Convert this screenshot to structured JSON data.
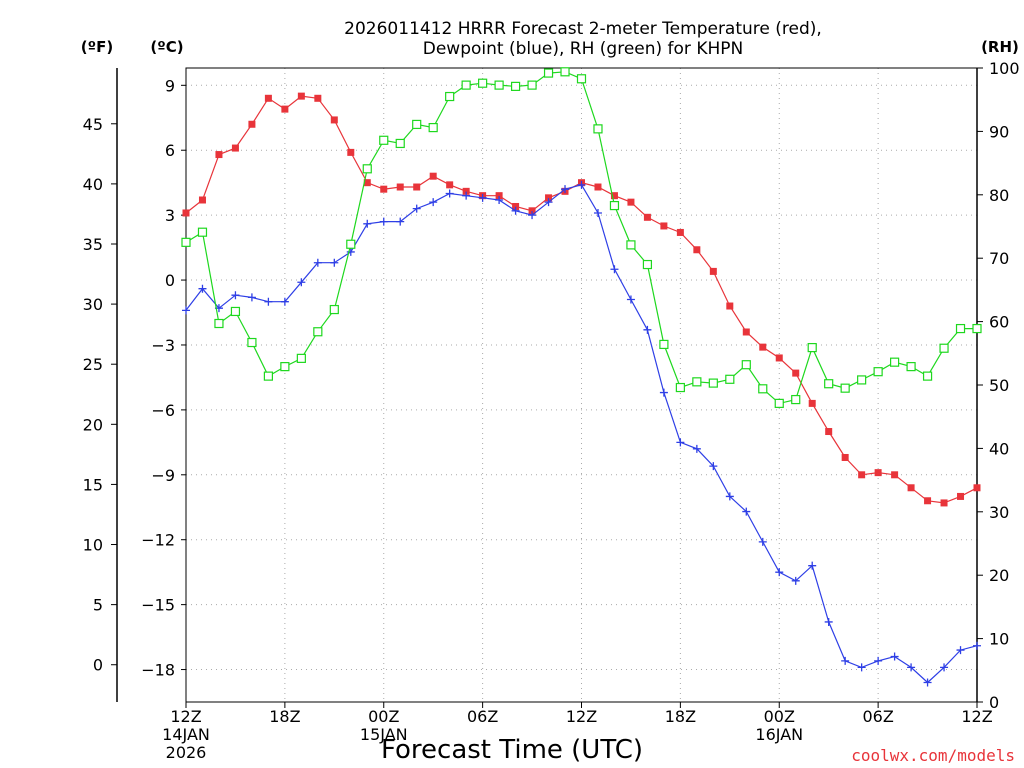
{
  "chart_data": {
    "type": "line",
    "title_line1": "2026011412 HRRR Forecast 2-meter Temperature (red),",
    "title_line2": "Dewpoint (blue), RH (green) for KHPN",
    "unit_labels": {
      "fahrenheit": "(ºF)",
      "celsius": "(ºC)",
      "rh": "(RH)"
    },
    "xlabel": "Forecast Time (UTC)",
    "credit": "coolwx.com/models",
    "x_ticks": [
      {
        "label": "12Z",
        "date": "14JAN",
        "year": "2026",
        "hour": 0
      },
      {
        "label": "18Z",
        "date": "",
        "year": "",
        "hour": 6
      },
      {
        "label": "00Z",
        "date": "15JAN",
        "year": "",
        "hour": 12
      },
      {
        "label": "06Z",
        "date": "",
        "year": "",
        "hour": 18
      },
      {
        "label": "12Z",
        "date": "",
        "year": "",
        "hour": 24
      },
      {
        "label": "18Z",
        "date": "",
        "year": "",
        "hour": 30
      },
      {
        "label": "00Z",
        "date": "16JAN",
        "year": "",
        "hour": 36
      },
      {
        "label": "06Z",
        "date": "",
        "year": "",
        "hour": 42
      },
      {
        "label": "12Z",
        "date": "",
        "year": "",
        "hour": 48
      }
    ],
    "xlim": [
      0,
      48
    ],
    "ylim_c": [
      -19.5,
      9.8
    ],
    "y_ticks_c": [
      "9",
      "6",
      "3",
      "0",
      "−3",
      "−6",
      "−9",
      "−12",
      "−15",
      "−18"
    ],
    "y_ticks_f": [
      "45",
      "40",
      "35",
      "30",
      "25",
      "20",
      "15",
      "10",
      "5",
      "0"
    ],
    "y_ticks_rh": [
      "100",
      "90",
      "80",
      "70",
      "60",
      "50",
      "40",
      "30",
      "20",
      "10",
      "0"
    ],
    "colors": {
      "temperature": "#e8343a",
      "dewpoint": "#2e3fe6",
      "rh": "#1ed81e"
    },
    "series": [
      {
        "name": "Temperature (°C)",
        "axis": "celsius",
        "marker": "filled-square",
        "values": [
          3.1,
          3.7,
          5.8,
          6.1,
          7.2,
          8.4,
          7.9,
          8.5,
          8.4,
          7.4,
          5.9,
          4.5,
          4.2,
          4.3,
          4.3,
          4.8,
          4.4,
          4.1,
          3.9,
          3.9,
          3.4,
          3.2,
          3.8,
          4.1,
          4.5,
          4.3,
          3.9,
          3.6,
          2.9,
          2.5,
          2.2,
          1.4,
          0.4,
          -1.2,
          -2.4,
          -3.1,
          -3.6,
          -4.3,
          -5.7,
          -7.0,
          -8.2,
          -9.0,
          -8.9,
          -9.0,
          -9.6,
          -10.2,
          -10.3,
          -10.0,
          -9.6
        ]
      },
      {
        "name": "Dewpoint (°C)",
        "axis": "celsius",
        "marker": "plus",
        "values": [
          -1.4,
          -0.4,
          -1.3,
          -0.7,
          -0.8,
          -1.0,
          -1.0,
          -0.1,
          0.8,
          0.8,
          1.3,
          2.6,
          2.7,
          2.7,
          3.3,
          3.6,
          4.0,
          3.9,
          3.8,
          3.7,
          3.2,
          3.0,
          3.6,
          4.2,
          4.4,
          3.1,
          0.5,
          -0.9,
          -2.3,
          -5.2,
          -7.5,
          -7.8,
          -8.6,
          -10.0,
          -10.7,
          -12.1,
          -13.5,
          -13.9,
          -13.2,
          -15.8,
          -17.6,
          -17.9,
          -17.6,
          -17.4,
          -17.9,
          -18.6,
          -17.9,
          -17.1,
          -16.9
        ]
      },
      {
        "name": "Relative Humidity (%)",
        "axis": "rh",
        "marker": "open-square",
        "values": [
          72.5,
          74.1,
          59.7,
          61.6,
          56.7,
          51.4,
          52.9,
          54.2,
          58.4,
          61.9,
          72.2,
          84.1,
          88.6,
          88.1,
          91.1,
          90.6,
          95.5,
          97.3,
          97.6,
          97.3,
          97.1,
          97.3,
          99.2,
          99.4,
          98.3,
          90.4,
          78.3,
          72.1,
          69.0,
          56.4,
          49.6,
          50.5,
          50.3,
          50.9,
          53.2,
          49.4,
          47.1,
          47.7,
          55.9,
          50.2,
          49.5,
          50.8,
          52.1,
          53.6,
          52.9,
          51.4,
          55.8,
          58.9,
          58.9
        ]
      }
    ]
  }
}
